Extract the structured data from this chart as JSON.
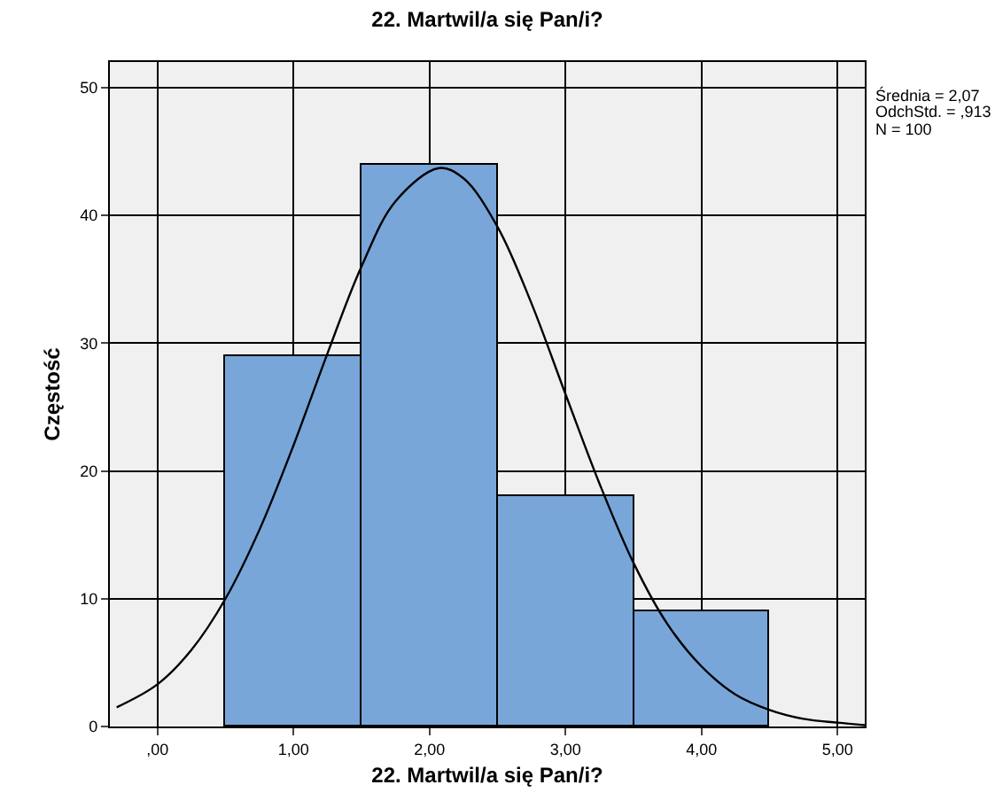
{
  "chart_data": {
    "type": "histogram",
    "title": "22. Martwil/a się Pan/i?",
    "xlabel": "22. Martwil/a się Pan/i?",
    "ylabel": "Częstość",
    "bins": [
      0.5,
      1.5,
      2.5,
      3.5,
      4.5
    ],
    "values": [
      29,
      44,
      18,
      9
    ],
    "color": "#79a6d9",
    "series": [
      {
        "type": "line",
        "color": "#000000",
        "x": [
          -0.3,
          0,
          0.25,
          0.5,
          0.75,
          1,
          1.25,
          1.5,
          1.75,
          2.07,
          2.25,
          2.5,
          2.75,
          3,
          3.25,
          3.5,
          3.75,
          4,
          4.25,
          4.5,
          4.75,
          5,
          5.2
        ],
        "values": [
          1.5,
          3.3,
          6.0,
          10.0,
          15.4,
          22.0,
          29.2,
          36.0,
          41.1,
          43.7,
          42.9,
          39.1,
          33.1,
          26.0,
          19.0,
          12.8,
          8.0,
          4.7,
          2.5,
          1.3,
          0.6,
          0.3,
          0.1
        ]
      }
    ],
    "xlim": [
      -0.35,
      5.2
    ],
    "ylim": [
      0,
      52
    ],
    "xticks": [
      {
        "value": 0,
        "label": ",00"
      },
      {
        "value": 1,
        "label": "1,00"
      },
      {
        "value": 2,
        "label": "2,00"
      },
      {
        "value": 3,
        "label": "3,00"
      },
      {
        "value": 4,
        "label": "4,00"
      },
      {
        "value": 5,
        "label": "5,00"
      }
    ],
    "yticks": [
      0,
      10,
      20,
      30,
      40,
      50
    ],
    "grid": true,
    "annotations": [
      "Średnia = 2,07",
      "OdchStd. = ,913",
      "N = 100"
    ]
  }
}
